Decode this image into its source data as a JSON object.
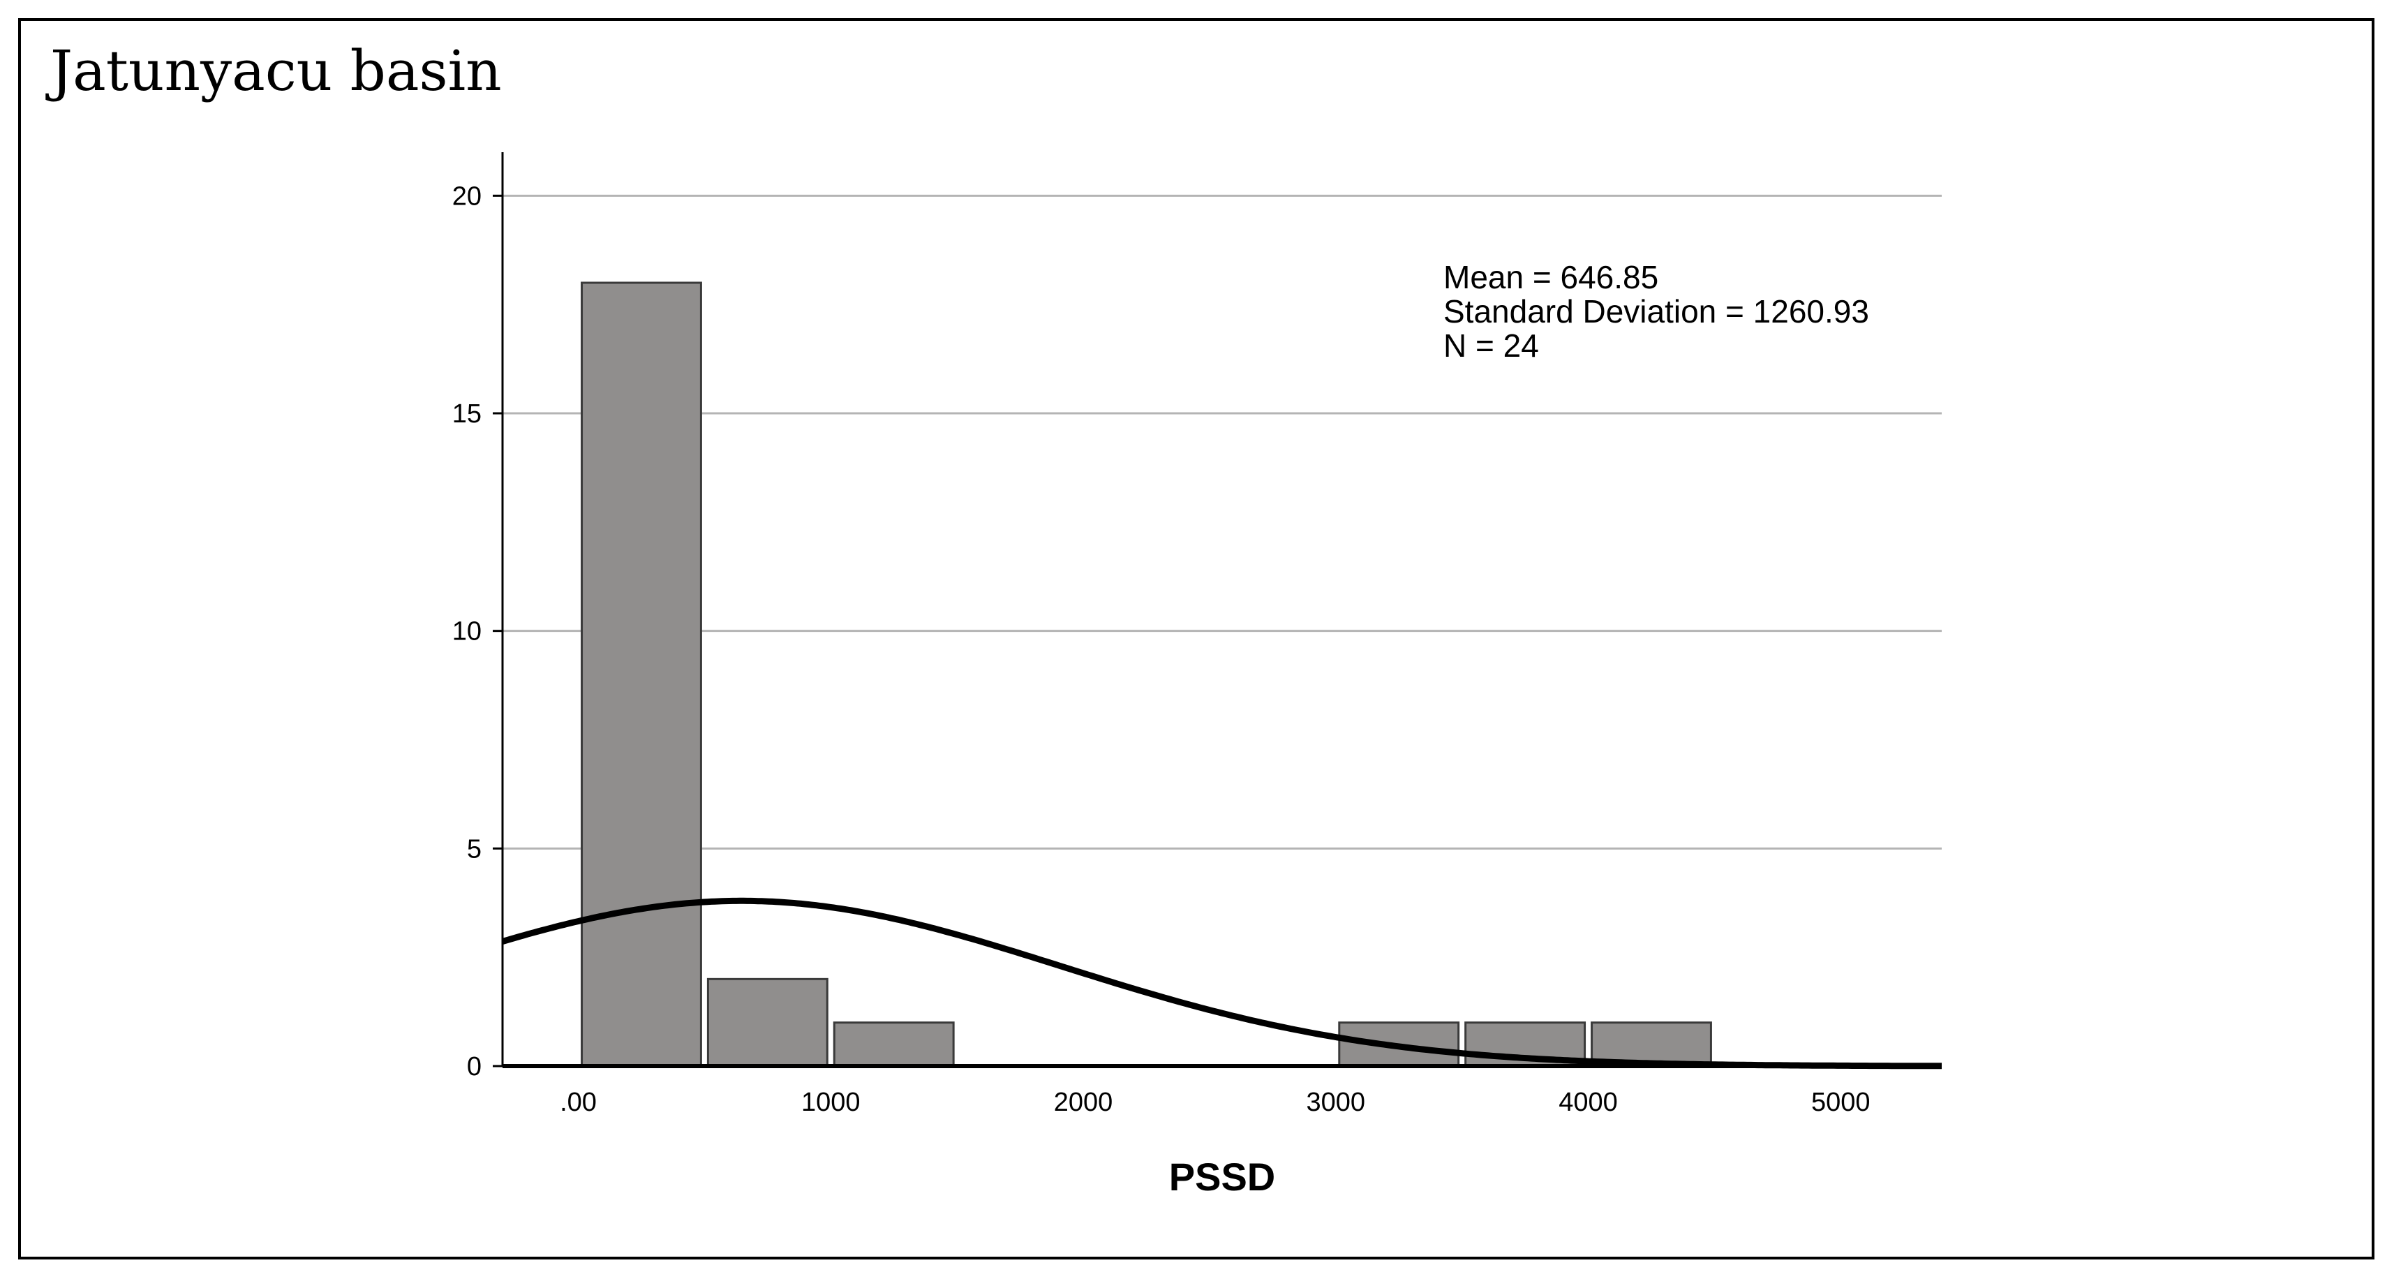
{
  "panel_label": "Jatunyacu basin",
  "chart_data": {
    "type": "bar",
    "subtype": "histogram",
    "xlabel": "PSSD",
    "ylabel": "",
    "bins": [
      {
        "x0": 0,
        "x1": 500,
        "count": 18
      },
      {
        "x0": 500,
        "x1": 1000,
        "count": 2
      },
      {
        "x0": 1000,
        "x1": 1500,
        "count": 1
      },
      {
        "x0": 1500,
        "x1": 2000,
        "count": 0
      },
      {
        "x0": 2000,
        "x1": 2500,
        "count": 0
      },
      {
        "x0": 2500,
        "x1": 3000,
        "count": 0
      },
      {
        "x0": 3000,
        "x1": 3500,
        "count": 1
      },
      {
        "x0": 3500,
        "x1": 4000,
        "count": 1
      },
      {
        "x0": 4000,
        "x1": 4500,
        "count": 1
      }
    ],
    "xlim": [
      -300,
      5400
    ],
    "ylim": [
      0,
      21
    ],
    "xticks": [
      0,
      1000,
      2000,
      3000,
      4000,
      5000
    ],
    "xtick_labels": [
      ".00",
      "1000",
      "2000",
      "3000",
      "4000",
      "5000"
    ],
    "yticks": [
      0,
      5,
      10,
      15,
      20
    ],
    "ytick_labels": [
      "0",
      "5",
      "10",
      "15",
      "20"
    ],
    "grid": "horizontal",
    "normal_curve": {
      "mean": 646.85,
      "sd": 1260.93,
      "n": 24,
      "bin_width": 500
    },
    "stats": {
      "mean": "Mean = 646.85",
      "sd": "Standard Deviation = 1260.93",
      "n": "N = 24"
    },
    "colors": {
      "bar_fill": "#908e8d",
      "bar_stroke": "#3a3a3a",
      "grid": "#b4b4b4",
      "curve": "#000000"
    }
  }
}
